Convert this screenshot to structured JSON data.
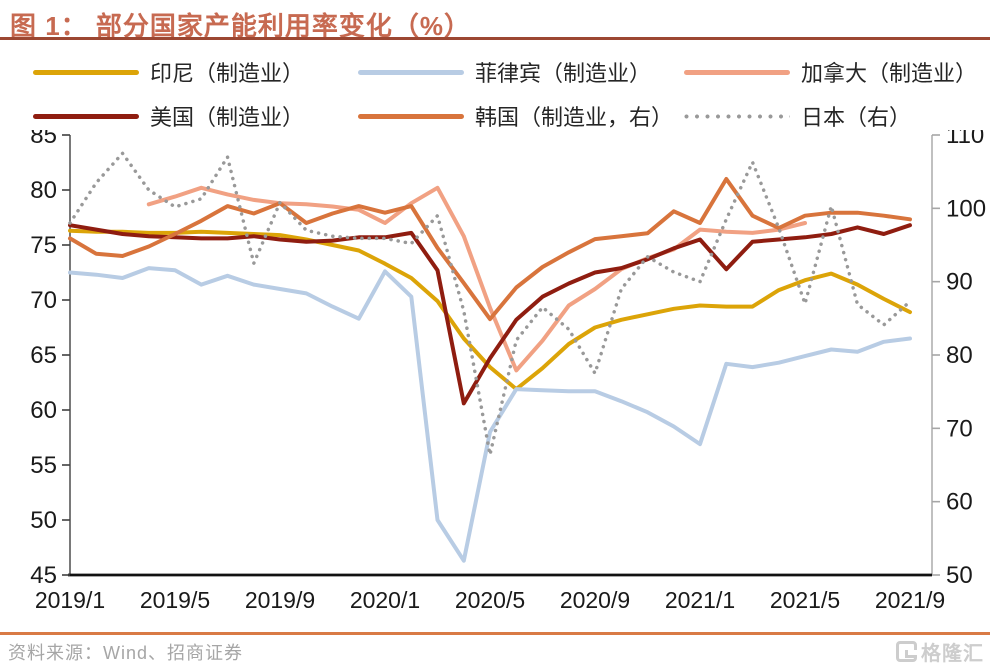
{
  "header": {
    "title": "图 1： 部分国家产能利用率变化（%）"
  },
  "footer": {
    "source": "资料来源：Wind、招商证券",
    "logo": "格隆汇"
  },
  "colors": {
    "title": "#C76A51",
    "title_rule": "#9C4732",
    "footer_rule": "#D97A45",
    "axis_text": "#1a1a1a",
    "left_axis_line": "#404040",
    "right_axis_line": "#A6A6A6",
    "bottom_axis_line": "#111111"
  },
  "chart_data": {
    "type": "line",
    "x": [
      "2019/1",
      "2019/2",
      "2019/3",
      "2019/4",
      "2019/5",
      "2019/6",
      "2019/7",
      "2019/8",
      "2019/9",
      "2019/10",
      "2019/11",
      "2019/12",
      "2020/1",
      "2020/2",
      "2020/3",
      "2020/4",
      "2020/5",
      "2020/6",
      "2020/7",
      "2020/8",
      "2020/9",
      "2020/10",
      "2020/11",
      "2020/12",
      "2021/1",
      "2021/2",
      "2021/3",
      "2021/4",
      "2021/5",
      "2021/6",
      "2021/7",
      "2021/8",
      "2021/9"
    ],
    "x_tick_labels": [
      "2019/1",
      "2019/5",
      "2019/9",
      "2020/1",
      "2020/5",
      "2020/9",
      "2021/1",
      "2021/5",
      "2021/9"
    ],
    "left_axis": {
      "min": 45,
      "max": 85,
      "ticks": [
        85,
        80,
        75,
        70,
        65,
        60,
        55,
        50,
        45
      ]
    },
    "right_axis": {
      "min": 50,
      "max": 110,
      "ticks": [
        110,
        100,
        90,
        80,
        70,
        60,
        50
      ]
    },
    "grid": "off",
    "legend_position": "top",
    "series": [
      {
        "name": "印尼（制造业）",
        "color": "#DCA408",
        "axis": "left",
        "style": "solid",
        "values": [
          76.3,
          76.2,
          76.2,
          76.1,
          76.1,
          76.2,
          76.1,
          76.0,
          75.9,
          75.5,
          75.0,
          74.5,
          73.3,
          72.0,
          69.9,
          66.5,
          63.9,
          61.9,
          63.8,
          66.0,
          67.5,
          68.2,
          68.7,
          69.2,
          69.5,
          69.4,
          69.4,
          70.9,
          71.8,
          72.4,
          71.4,
          70.1,
          68.9
        ]
      },
      {
        "name": "菲律宾（制造业）",
        "color": "#B8CCE4",
        "axis": "left",
        "style": "solid",
        "values": [
          72.5,
          72.3,
          72.0,
          72.9,
          72.7,
          71.4,
          72.2,
          71.4,
          71.0,
          70.6,
          69.4,
          68.3,
          72.6,
          70.3,
          50.0,
          46.3,
          58.0,
          61.9,
          61.8,
          61.7,
          61.7,
          60.8,
          59.8,
          58.5,
          56.9,
          64.2,
          63.9,
          64.3,
          64.9,
          65.5,
          65.3,
          66.2,
          66.5
        ]
      },
      {
        "name": "加拿大（制造业）",
        "color": "#F1A183",
        "axis": "left",
        "style": "solid",
        "values": [
          null,
          null,
          null,
          78.7,
          79.4,
          80.2,
          79.6,
          79.1,
          78.8,
          78.7,
          78.5,
          78.2,
          77.0,
          78.8,
          80.2,
          75.8,
          69.3,
          63.6,
          66.3,
          69.5,
          71.0,
          72.8,
          73.8,
          74.6,
          76.4,
          76.2,
          76.1,
          76.4,
          77.0,
          null,
          null,
          null,
          null
        ]
      },
      {
        "name": "美国（制造业）",
        "color": "#8F1D10",
        "axis": "left",
        "style": "solid",
        "values": [
          76.8,
          76.4,
          76.0,
          75.8,
          75.7,
          75.6,
          75.6,
          75.8,
          75.5,
          75.3,
          75.4,
          75.7,
          75.7,
          76.1,
          72.7,
          60.6,
          64.7,
          68.2,
          70.3,
          71.5,
          72.5,
          72.9,
          73.7,
          74.7,
          75.5,
          72.8,
          75.3,
          75.5,
          75.7,
          76.0,
          76.6,
          76.0,
          76.8
        ]
      },
      {
        "name": "韩国（制造业，右）",
        "color": "#D8743C",
        "axis": "right",
        "style": "solid",
        "values": [
          95.9,
          93.8,
          93.5,
          94.8,
          96.5,
          98.3,
          100.3,
          99.3,
          100.7,
          98.0,
          99.3,
          100.3,
          99.4,
          100.3,
          94.6,
          89.8,
          84.9,
          89.2,
          92.0,
          94.0,
          95.8,
          96.2,
          96.6,
          99.6,
          98.0,
          104.0,
          99.0,
          97.3,
          99.0,
          99.4,
          99.4,
          99.0,
          98.5
        ]
      },
      {
        "name": "日本（右）",
        "color": "#999999",
        "axis": "right",
        "style": "dotted",
        "values": [
          98.0,
          103.5,
          107.5,
          102.5,
          100.2,
          101.3,
          107.0,
          92.5,
          100.8,
          97.0,
          96.2,
          95.9,
          95.9,
          95.2,
          99.0,
          86.0,
          66.4,
          82.0,
          86.5,
          83.5,
          77.5,
          89.0,
          93.4,
          91.3,
          90.0,
          98.5,
          106.3,
          97.3,
          87.0,
          100.3,
          86.9,
          84.1,
          87.3
        ]
      }
    ]
  }
}
